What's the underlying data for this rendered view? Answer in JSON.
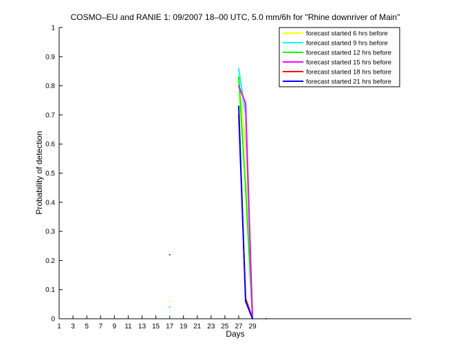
{
  "chart_data": {
    "type": "line",
    "title": "COSMO–EU and RANIE 1: 09/2007 18–00 UTC, 5.0 mm/6h for \"Rhine downriver of Main\"",
    "x_label": "Days",
    "y_label": "Probability of detection",
    "x": [
      17,
      18,
      27,
      28,
      29,
      30,
      31
    ],
    "series": [
      {
        "name": "forecast started 6 hrs before",
        "color": "#ffff00",
        "values": [
          0.06,
          null,
          0.83,
          0.6,
          0,
          null,
          null
        ]
      },
      {
        "name": "forecast started 9 hrs before",
        "color": "#00ffff",
        "values": [
          0.01,
          null,
          0.86,
          0.7,
          0,
          null,
          null
        ]
      },
      {
        "name": "forecast started 12 hrs before",
        "color": "#00ff00",
        "values": [
          0.04,
          null,
          0.83,
          0.45,
          0,
          null,
          null
        ]
      },
      {
        "name": "forecast started 15 hrs before",
        "color": "#ff00ff",
        "values": [
          null,
          null,
          0.8,
          0.74,
          0,
          null,
          null
        ]
      },
      {
        "name": "forecast started 18 hrs before",
        "color": "#ff0000",
        "values": [
          null,
          null,
          0.7,
          0.07,
          0,
          null,
          null
        ]
      },
      {
        "name": "forecast started 21 hrs before",
        "color": "#0000ff",
        "values": [
          0.22,
          null,
          0.73,
          0.06,
          0,
          null,
          0
        ]
      }
    ],
    "xlim": [
      1,
      52
    ],
    "xticks": [
      1,
      3,
      5,
      7,
      9,
      11,
      13,
      15,
      17,
      19,
      21,
      23,
      25,
      27,
      29
    ],
    "ylim": [
      0,
      1
    ],
    "yticks": [
      0,
      0.1,
      0.2,
      0.3,
      0.4,
      0.5,
      0.6,
      0.7,
      0.8,
      0.9,
      1
    ],
    "legend": "upper right"
  }
}
